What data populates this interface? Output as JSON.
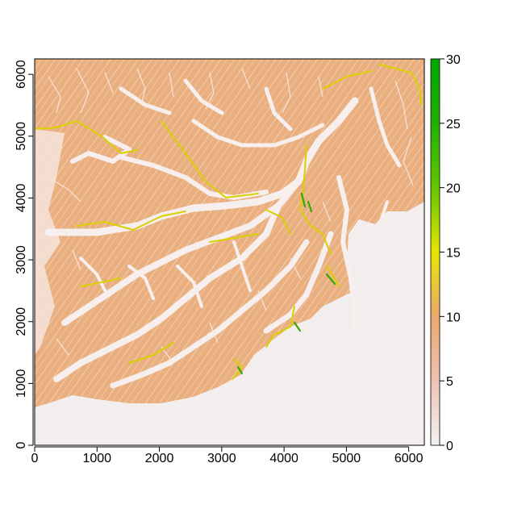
{
  "map": {
    "type": "raster",
    "x_ticks": [
      "0",
      "1000",
      "2000",
      "3000",
      "4000",
      "5000",
      "6000"
    ],
    "y_ticks": [
      "0",
      "1000",
      "2000",
      "3000",
      "4000",
      "5000",
      "6000"
    ],
    "x_range": [
      0,
      6250
    ],
    "y_range": [
      0,
      6250
    ],
    "axes_box": true
  },
  "legend": {
    "type": "colorbar",
    "placement": "right",
    "range": [
      0,
      30
    ],
    "ticks": [
      "0",
      "5",
      "10",
      "15",
      "20",
      "25",
      "30"
    ],
    "colors": [
      {
        "value": 0,
        "color": "#f2f2f2"
      },
      {
        "value": 5,
        "color": "#efc2b3"
      },
      {
        "value": 10,
        "color": "#eba76d"
      },
      {
        "value": 15,
        "color": "#e6e600"
      },
      {
        "value": 20,
        "color": "#63c600"
      },
      {
        "value": 25,
        "color": "#22b000"
      },
      {
        "value": 30,
        "color": "#00a600"
      }
    ]
  },
  "colors": {
    "background_low": "#f2f2f2",
    "terrain": "#e9ac78",
    "ridges": "#d8d000",
    "peaks": "#2aa600"
  }
}
